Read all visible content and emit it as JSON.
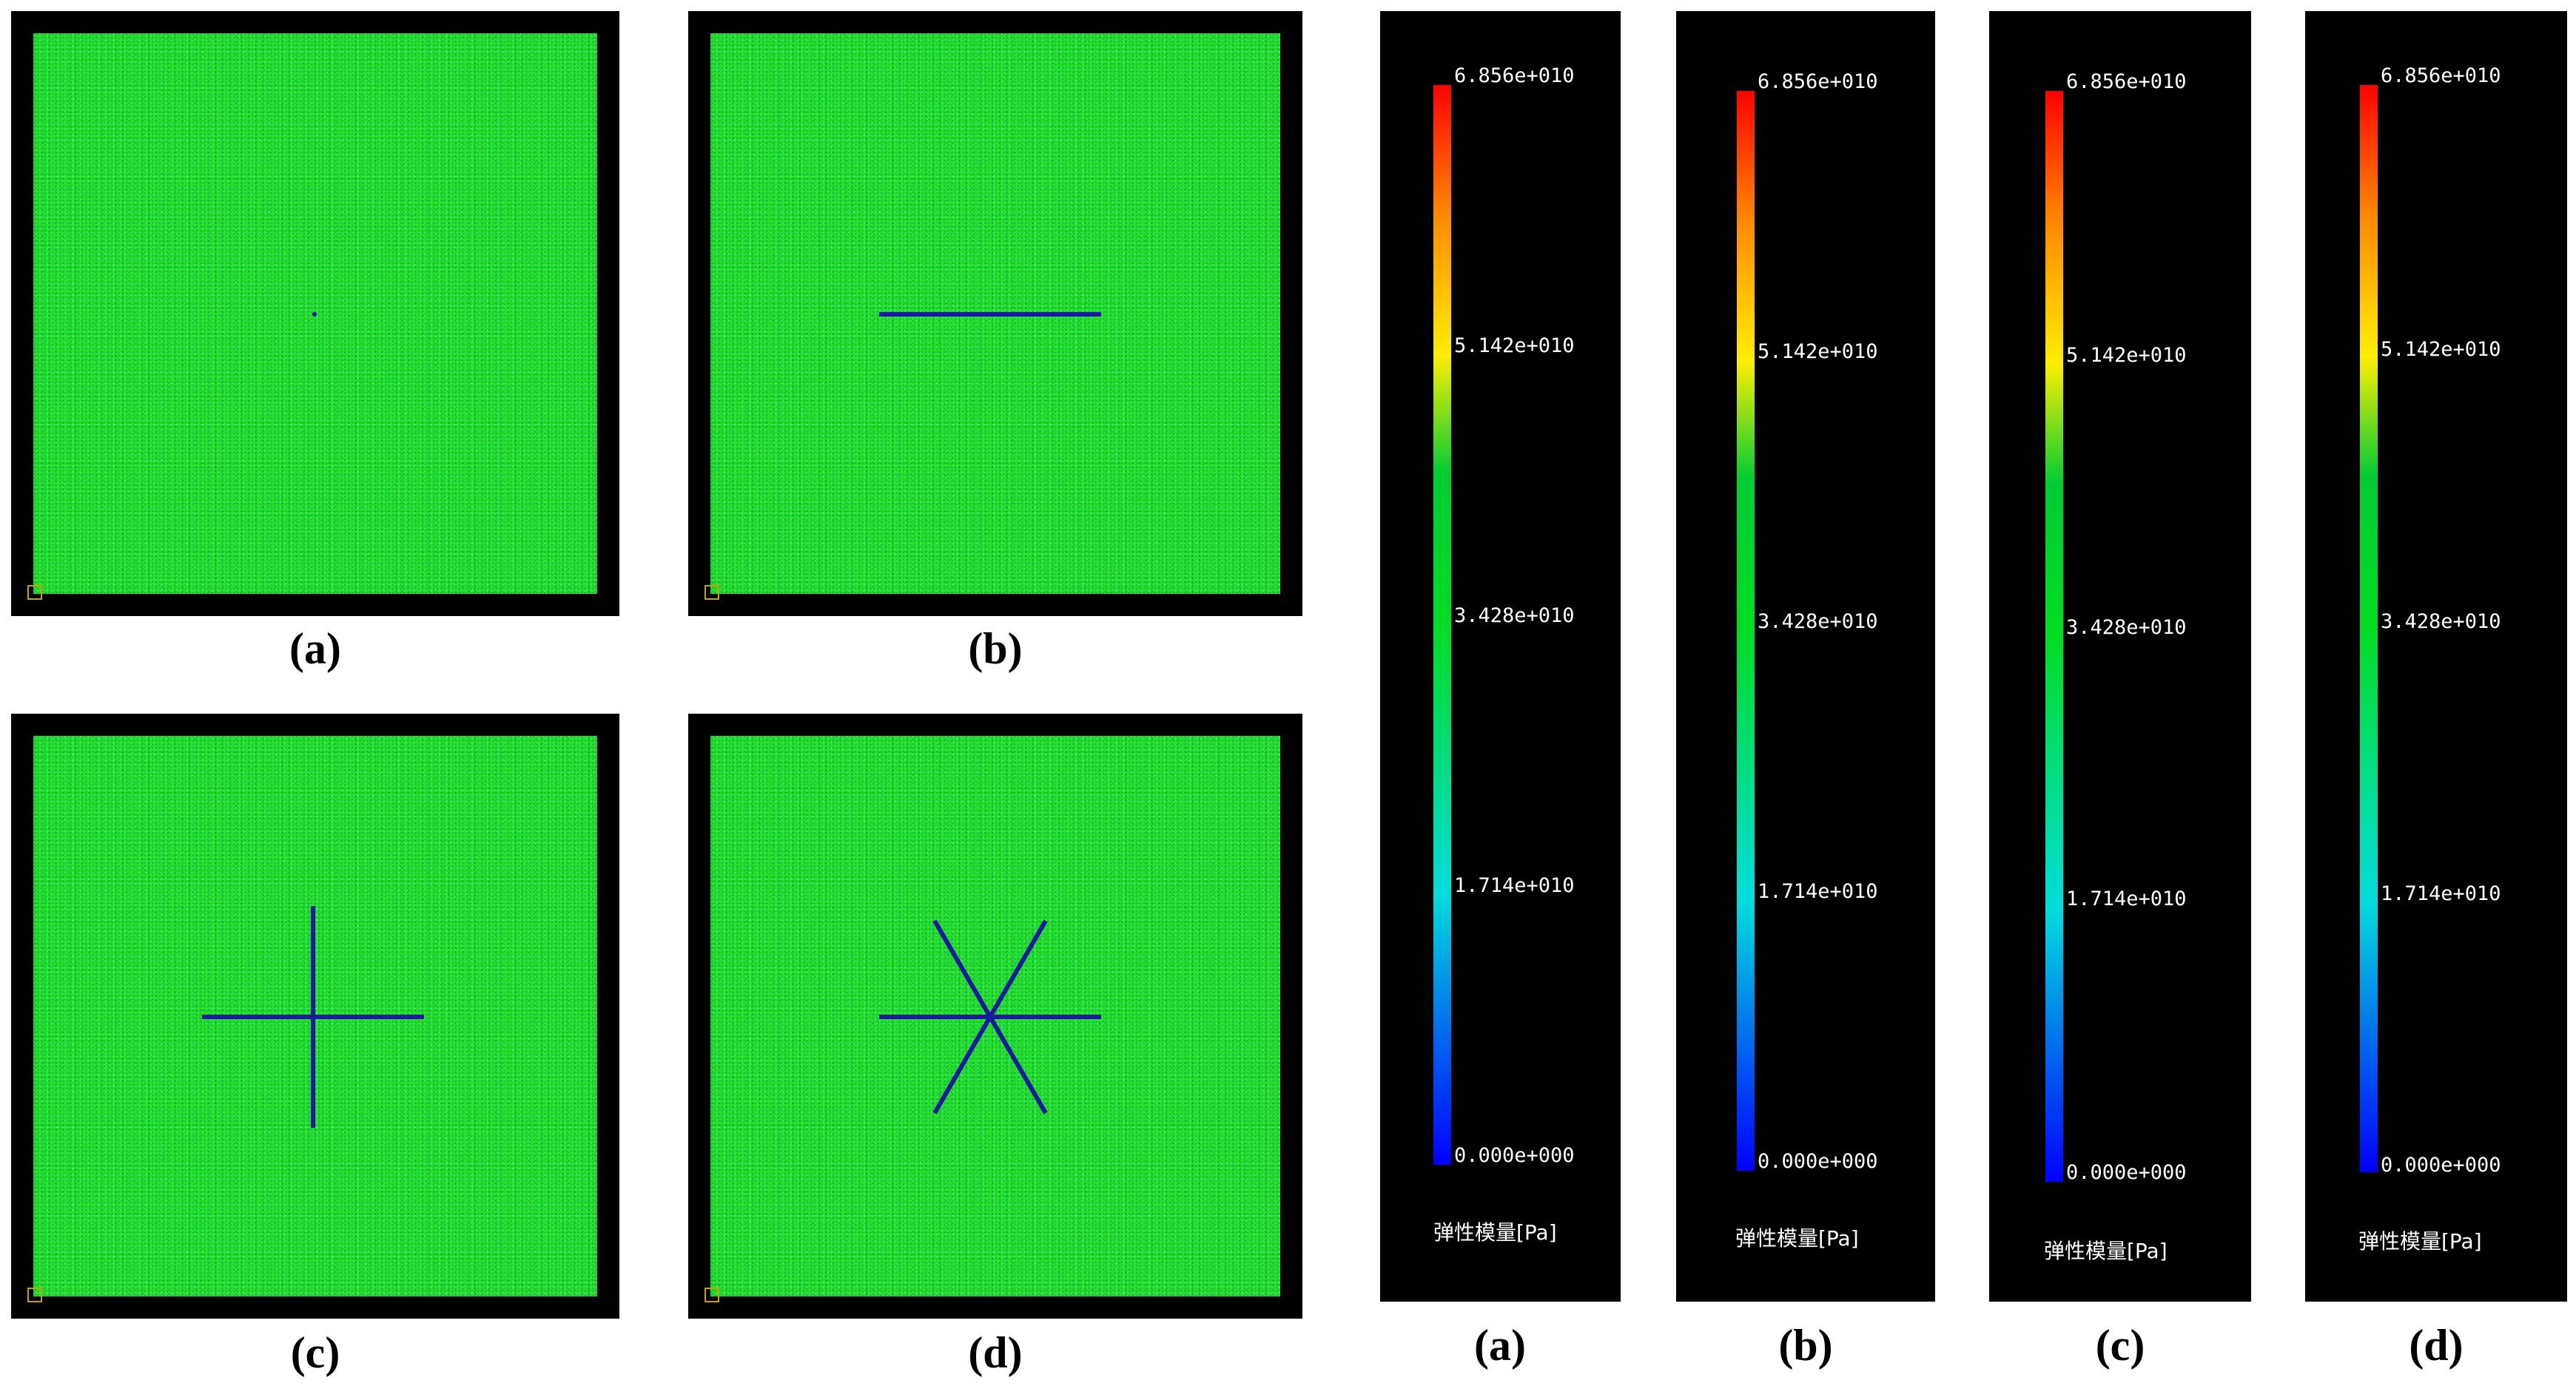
{
  "models": [
    {
      "label": "(a)",
      "cracks": "none"
    },
    {
      "label": "(b)",
      "cracks": "single-horizontal"
    },
    {
      "label": "(c)",
      "cracks": "cross"
    },
    {
      "label": "(d)",
      "cracks": "six-ray-star"
    }
  ],
  "legends": [
    {
      "label": "(a)",
      "ticks": [
        "6.856e+010",
        "5.142e+010",
        "3.428e+010",
        "1.714e+010",
        "0.000e+000"
      ],
      "unit": "弹性模量[Pa]"
    },
    {
      "label": "(b)",
      "ticks": [
        "6.856e+010",
        "5.142e+010",
        "3.428e+010",
        "1.714e+010",
        "0.000e+000"
      ],
      "unit": "弹性模量[Pa]"
    },
    {
      "label": "(c)",
      "ticks": [
        "6.856e+010",
        "5.142e+010",
        "3.428e+010",
        "1.714e+010",
        "0.000e+000"
      ],
      "unit": "弹性模量[Pa]"
    },
    {
      "label": "(d)",
      "ticks": [
        "6.856e+010",
        "5.142e+010",
        "3.428e+010",
        "1.714e+010",
        "0.000e+000"
      ],
      "unit": "弹性模量[Pa]"
    }
  ],
  "colors": {
    "matrix": "#22e22a",
    "crack": "#1a1aa0",
    "frame": "#000000"
  }
}
